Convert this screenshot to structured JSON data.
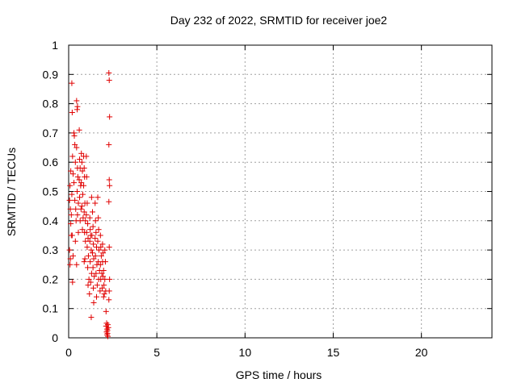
{
  "chart_data": {
    "type": "scatter",
    "title": "Day 232 of 2022, SRMTID for receiver joe2",
    "xlabel": "GPS time / hours",
    "ylabel": "SRMTID / TECUs",
    "xlim": [
      0,
      24
    ],
    "ylim": [
      0,
      1
    ],
    "xticks": [
      0,
      5,
      10,
      15,
      20
    ],
    "xtick_labels": [
      "0",
      "5",
      "10",
      "15",
      "20"
    ],
    "yticks": [
      0,
      0.1,
      0.2,
      0.3,
      0.4,
      0.5,
      0.6,
      0.7,
      0.8,
      0.9,
      1
    ],
    "ytick_labels": [
      "0",
      "0.1",
      "0.2",
      "0.3",
      "0.4",
      "0.5",
      "0.6",
      "0.7",
      "0.8",
      "0.9",
      "1"
    ],
    "grid": true,
    "marker": "+",
    "color": "#e00000",
    "series": [
      {
        "name": "SRMTID",
        "points": [
          [
            0.05,
            0.47
          ],
          [
            0.08,
            0.52
          ],
          [
            0.1,
            0.44
          ],
          [
            0.12,
            0.39
          ],
          [
            0.15,
            0.35
          ],
          [
            0.05,
            0.3
          ],
          [
            0.1,
            0.27
          ],
          [
            0.08,
            0.25
          ],
          [
            0.12,
            0.57
          ],
          [
            0.18,
            0.87
          ],
          [
            0.2,
            0.77
          ],
          [
            0.22,
            0.62
          ],
          [
            0.25,
            0.56
          ],
          [
            0.18,
            0.49
          ],
          [
            0.15,
            0.42
          ],
          [
            0.2,
            0.35
          ],
          [
            0.25,
            0.28
          ],
          [
            0.22,
            0.19
          ],
          [
            0.3,
            0.7
          ],
          [
            0.32,
            0.69
          ],
          [
            0.35,
            0.66
          ],
          [
            0.38,
            0.6
          ],
          [
            0.3,
            0.53
          ],
          [
            0.35,
            0.47
          ],
          [
            0.4,
            0.44
          ],
          [
            0.42,
            0.4
          ],
          [
            0.38,
            0.33
          ],
          [
            0.45,
            0.81
          ],
          [
            0.48,
            0.78
          ],
          [
            0.5,
            0.79
          ],
          [
            0.45,
            0.65
          ],
          [
            0.5,
            0.58
          ],
          [
            0.52,
            0.55
          ],
          [
            0.48,
            0.5
          ],
          [
            0.55,
            0.46
          ],
          [
            0.5,
            0.42
          ],
          [
            0.55,
            0.36
          ],
          [
            0.45,
            0.25
          ],
          [
            0.6,
            0.71
          ],
          [
            0.62,
            0.61
          ],
          [
            0.65,
            0.58
          ],
          [
            0.6,
            0.54
          ],
          [
            0.68,
            0.52
          ],
          [
            0.62,
            0.48
          ],
          [
            0.7,
            0.44
          ],
          [
            0.65,
            0.4
          ],
          [
            0.72,
            0.63
          ],
          [
            0.75,
            0.6
          ],
          [
            0.78,
            0.57
          ],
          [
            0.72,
            0.53
          ],
          [
            0.8,
            0.49
          ],
          [
            0.75,
            0.45
          ],
          [
            0.82,
            0.41
          ],
          [
            0.78,
            0.37
          ],
          [
            0.85,
            0.62
          ],
          [
            0.88,
            0.58
          ],
          [
            0.9,
            0.55
          ],
          [
            0.85,
            0.52
          ],
          [
            0.92,
            0.46
          ],
          [
            0.88,
            0.43
          ],
          [
            0.95,
            0.4
          ],
          [
            0.9,
            0.36
          ],
          [
            0.95,
            0.33
          ],
          [
            0.92,
            0.27
          ],
          [
            0.88,
            0.26
          ],
          [
            1.0,
            0.62
          ],
          [
            1.02,
            0.55
          ],
          [
            1.05,
            0.46
          ],
          [
            1.0,
            0.42
          ],
          [
            1.08,
            0.39
          ],
          [
            1.02,
            0.36
          ],
          [
            1.1,
            0.34
          ],
          [
            1.05,
            0.31
          ],
          [
            1.12,
            0.28
          ],
          [
            1.08,
            0.24
          ],
          [
            1.15,
            0.2
          ],
          [
            1.1,
            0.18
          ],
          [
            1.18,
            0.15
          ],
          [
            1.2,
            0.41
          ],
          [
            1.22,
            0.37
          ],
          [
            1.25,
            0.35
          ],
          [
            1.2,
            0.33
          ],
          [
            1.28,
            0.3
          ],
          [
            1.22,
            0.26
          ],
          [
            1.3,
            0.22
          ],
          [
            1.25,
            0.19
          ],
          [
            1.28,
            0.07
          ],
          [
            1.3,
            0.48
          ],
          [
            1.35,
            0.43
          ],
          [
            1.38,
            0.38
          ],
          [
            1.32,
            0.35
          ],
          [
            1.4,
            0.32
          ],
          [
            1.35,
            0.29
          ],
          [
            1.42,
            0.27
          ],
          [
            1.38,
            0.24
          ],
          [
            1.45,
            0.21
          ],
          [
            1.4,
            0.17
          ],
          [
            1.42,
            0.12
          ],
          [
            1.5,
            0.46
          ],
          [
            1.52,
            0.4
          ],
          [
            1.55,
            0.36
          ],
          [
            1.5,
            0.34
          ],
          [
            1.58,
            0.31
          ],
          [
            1.52,
            0.28
          ],
          [
            1.6,
            0.25
          ],
          [
            1.55,
            0.22
          ],
          [
            1.62,
            0.18
          ],
          [
            1.58,
            0.14
          ],
          [
            1.65,
            0.48
          ],
          [
            1.68,
            0.41
          ],
          [
            1.7,
            0.37
          ],
          [
            1.65,
            0.33
          ],
          [
            1.72,
            0.3
          ],
          [
            1.68,
            0.26
          ],
          [
            1.75,
            0.23
          ],
          [
            1.7,
            0.2
          ],
          [
            1.78,
            0.16
          ],
          [
            1.8,
            0.35
          ],
          [
            1.82,
            0.31
          ],
          [
            1.85,
            0.28
          ],
          [
            1.8,
            0.25
          ],
          [
            1.88,
            0.22
          ],
          [
            1.82,
            0.2
          ],
          [
            1.9,
            0.17
          ],
          [
            1.92,
            0.32
          ],
          [
            1.95,
            0.29
          ],
          [
            1.92,
            0.26
          ],
          [
            1.98,
            0.23
          ],
          [
            1.95,
            0.21
          ],
          [
            2.0,
            0.18
          ],
          [
            2.02,
            0.15
          ],
          [
            1.98,
            0.14
          ],
          [
            2.05,
            0.3
          ],
          [
            2.08,
            0.26
          ],
          [
            2.05,
            0.2
          ],
          [
            2.1,
            0.16
          ],
          [
            2.12,
            0.09
          ],
          [
            2.15,
            0.05
          ],
          [
            2.12,
            0.04
          ],
          [
            2.18,
            0.03
          ],
          [
            2.15,
            0.02
          ],
          [
            2.2,
            0.015
          ],
          [
            2.18,
            0.01
          ],
          [
            2.22,
            0.045
          ],
          [
            2.2,
            0.025
          ],
          [
            2.25,
            0.035
          ],
          [
            2.22,
            0.005
          ],
          [
            2.28,
            0.905
          ],
          [
            2.3,
            0.88
          ],
          [
            2.32,
            0.755
          ],
          [
            2.28,
            0.66
          ],
          [
            2.3,
            0.54
          ],
          [
            2.32,
            0.52
          ],
          [
            2.28,
            0.465
          ],
          [
            2.3,
            0.31
          ],
          [
            2.32,
            0.2
          ],
          [
            2.3,
            0.16
          ],
          [
            2.28,
            0.13
          ]
        ]
      }
    ]
  }
}
